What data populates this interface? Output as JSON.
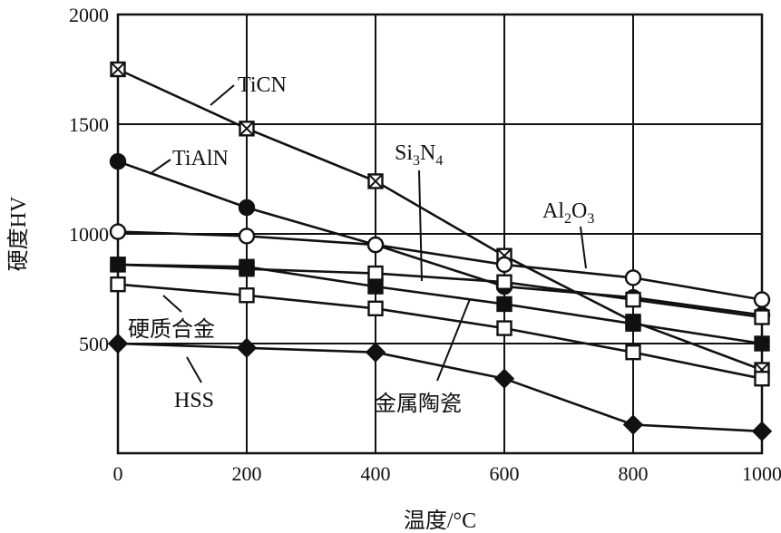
{
  "chart_data": {
    "type": "line",
    "title": "",
    "xlabel": "温度/°C",
    "ylabel": "硬度HV",
    "xlim": [
      0,
      1000
    ],
    "ylim": [
      0,
      2000
    ],
    "xticks": [
      "0",
      "200",
      "400",
      "600",
      "800",
      "1000"
    ],
    "yticks": [
      "500",
      "1000",
      "1500",
      "2000"
    ],
    "grid": true,
    "series": [
      {
        "name": "TiCN",
        "marker": "boxed-x",
        "x": [
          0,
          200,
          400,
          600,
          800,
          1000
        ],
        "y": [
          1750,
          1480,
          1240,
          900,
          600,
          380
        ]
      },
      {
        "name": "TiAlN",
        "marker": "filled-circle",
        "x": [
          0,
          200,
          400,
          600,
          800,
          1000
        ],
        "y": [
          1330,
          1120,
          950,
          760,
          710,
          630
        ]
      },
      {
        "name": "Al2O3",
        "marker": "open-circle",
        "x": [
          0,
          200,
          400,
          600,
          800,
          1000
        ],
        "y": [
          1010,
          990,
          950,
          860,
          800,
          700
        ]
      },
      {
        "name": "Si3N4",
        "marker": "open-square",
        "x": [
          0,
          200,
          400,
          600,
          800,
          1000
        ],
        "y": [
          860,
          840,
          820,
          780,
          700,
          620
        ]
      },
      {
        "name": "金属陶瓷",
        "marker": "filled-square",
        "x": [
          0,
          200,
          400,
          600,
          800,
          1000
        ],
        "y": [
          860,
          850,
          760,
          680,
          590,
          500
        ]
      },
      {
        "name": "硬质合金",
        "marker": "open-square",
        "x": [
          0,
          200,
          400,
          600,
          800,
          1000
        ],
        "y": [
          770,
          720,
          660,
          570,
          460,
          340
        ]
      },
      {
        "name": "HSS",
        "marker": "filled-diamond",
        "x": [
          0,
          200,
          400,
          600,
          800,
          1000
        ],
        "y": [
          500,
          480,
          460,
          340,
          130,
          100
        ]
      }
    ],
    "annotations": [
      {
        "text": "TiCN",
        "series": "TiCN"
      },
      {
        "text": "TiAlN",
        "series": "TiAlN"
      },
      {
        "text_main": "Si",
        "sub1": "3",
        "text_mid": "N",
        "sub2": "4",
        "series": "Si3N4"
      },
      {
        "text_main": "Al",
        "sub1": "2",
        "text_mid": "O",
        "sub2": "3",
        "series": "Al2O3"
      },
      {
        "text": "硬质合金",
        "series": "硬质合金"
      },
      {
        "text": "HSS",
        "series": "HSS"
      },
      {
        "text": "金属陶瓷",
        "series": "金属陶瓷"
      }
    ]
  }
}
